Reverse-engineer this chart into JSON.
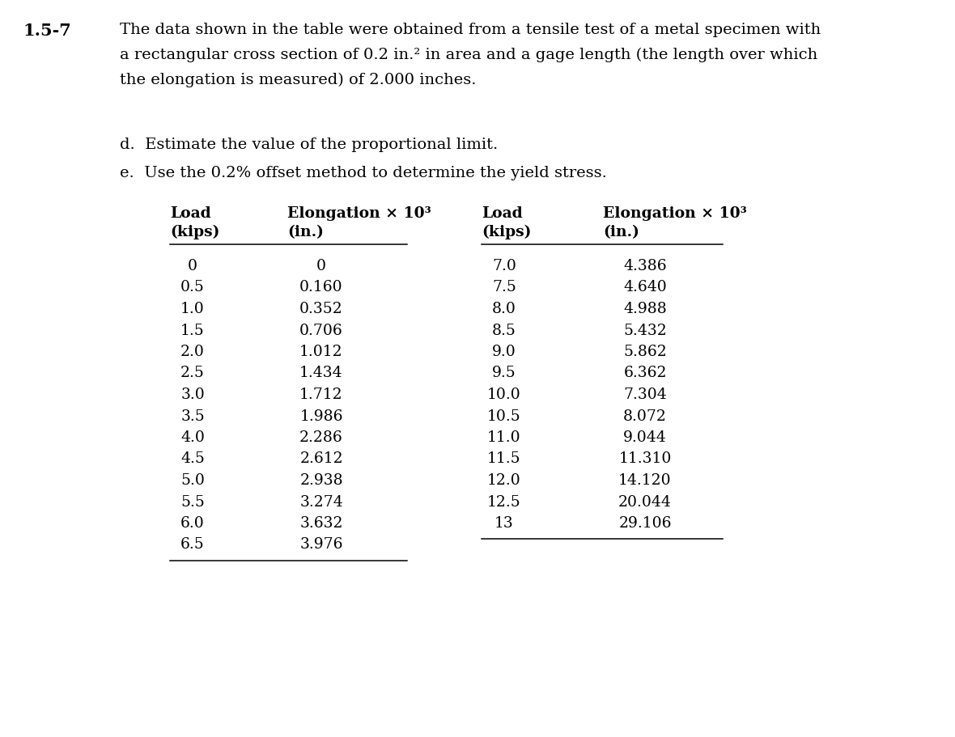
{
  "problem_number": "1.5-7",
  "problem_text_line1": "The data shown in the table were obtained from a tensile test of a metal specimen with",
  "problem_text_line2": "a rectangular cross section of 0.2 in.² in area and a gage length (the length over which",
  "problem_text_line3": "the elongation is measured) of 2.000 inches.",
  "part_d": "d.  Estimate the value of the proportional limit.",
  "part_e": "e.  Use the 0.2% offset method to determine the yield stress.",
  "col1_header1": "Load",
  "col1_header2": "(kips)",
  "col2_header1": "Elongation × 10³",
  "col2_header2": "(in.)",
  "col3_header1": "Load",
  "col3_header2": "(kips)",
  "col4_header1": "Elongation × 10³",
  "col4_header2": "(in.)",
  "left_load": [
    "0",
    "0.5",
    "1.0",
    "1.5",
    "2.0",
    "2.5",
    "3.0",
    "3.5",
    "4.0",
    "4.5",
    "5.0",
    "5.5",
    "6.0",
    "6.5"
  ],
  "left_elong": [
    "0",
    "0.160",
    "0.352",
    "0.706",
    "1.012",
    "1.434",
    "1.712",
    "1.986",
    "2.286",
    "2.612",
    "2.938",
    "3.274",
    "3.632",
    "3.976"
  ],
  "right_load": [
    "7.0",
    "7.5",
    "8.0",
    "8.5",
    "9.0",
    "9.5",
    "10.0",
    "10.5",
    "11.0",
    "11.5",
    "12.0",
    "12.5",
    "13"
  ],
  "right_elong": [
    "4.386",
    "4.640",
    "4.988",
    "5.432",
    "5.862",
    "6.362",
    "7.304",
    "8.072",
    "9.044",
    "11.310",
    "14.120",
    "20.044",
    "29.106"
  ],
  "bg_color": "#ffffff",
  "text_color": "#000000",
  "font_size_problem": 14.0,
  "font_size_table": 13.5,
  "font_size_problem_num": 15.0,
  "fig_width": 11.8,
  "fig_height": 9.11,
  "dpi": 100
}
